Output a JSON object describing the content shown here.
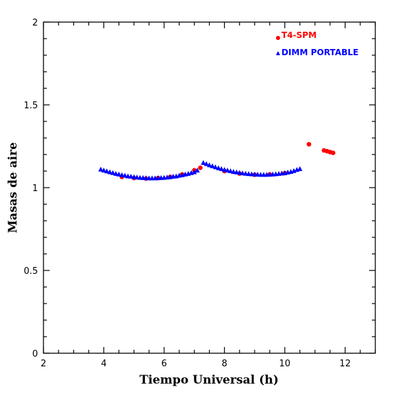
{
  "chart_data": {
    "type": "scatter",
    "xlabel": "Tiempo Universal (h)",
    "ylabel": "Masas de aire",
    "xlim": [
      2,
      13
    ],
    "ylim": [
      0,
      2
    ],
    "x_ticks": [
      2,
      4,
      6,
      8,
      10,
      12
    ],
    "y_ticks": [
      0,
      0.5,
      1,
      1.5,
      2
    ],
    "x_tick_labels": [
      "2",
      "4",
      "6",
      "8",
      "10",
      "12"
    ],
    "y_tick_labels": [
      "0",
      "0.5",
      "1",
      "1.5",
      "2"
    ],
    "legend_position": "top-right",
    "colors": {
      "t4": "#ff0000",
      "dimm": "#0000ff",
      "axes": "#000000"
    },
    "series": [
      {
        "name": "T4-SPM",
        "marker": "circle",
        "color": "#ff0000",
        "points": [
          [
            4.6,
            1.065
          ],
          [
            5.0,
            1.058
          ],
          [
            5.4,
            1.055
          ],
          [
            5.8,
            1.058
          ],
          [
            6.2,
            1.065
          ],
          [
            6.6,
            1.08
          ],
          [
            7.0,
            1.105
          ],
          [
            7.2,
            1.12
          ],
          [
            8.0,
            1.1
          ],
          [
            8.5,
            1.085
          ],
          [
            9.0,
            1.078
          ],
          [
            9.5,
            1.08
          ],
          [
            10.0,
            1.088
          ],
          [
            10.8,
            1.262
          ],
          [
            11.3,
            1.225
          ],
          [
            11.4,
            1.22
          ],
          [
            11.5,
            1.215
          ],
          [
            11.6,
            1.21
          ]
        ]
      },
      {
        "name": "DIMM PORTABLE",
        "marker": "triangle",
        "color": "#0000ff",
        "points": [
          [
            3.9,
            1.11
          ],
          [
            4.0,
            1.104
          ],
          [
            4.1,
            1.099
          ],
          [
            4.2,
            1.094
          ],
          [
            4.3,
            1.089
          ],
          [
            4.4,
            1.084
          ],
          [
            4.5,
            1.08
          ],
          [
            4.6,
            1.076
          ],
          [
            4.7,
            1.073
          ],
          [
            4.8,
            1.069
          ],
          [
            4.9,
            1.067
          ],
          [
            5.0,
            1.064
          ],
          [
            5.1,
            1.062
          ],
          [
            5.2,
            1.06
          ],
          [
            5.3,
            1.059
          ],
          [
            5.4,
            1.058
          ],
          [
            5.5,
            1.057
          ],
          [
            5.6,
            1.057
          ],
          [
            5.7,
            1.057
          ],
          [
            5.8,
            1.058
          ],
          [
            5.9,
            1.059
          ],
          [
            6.0,
            1.06
          ],
          [
            6.1,
            1.062
          ],
          [
            6.2,
            1.064
          ],
          [
            6.3,
            1.067
          ],
          [
            6.4,
            1.069
          ],
          [
            6.5,
            1.073
          ],
          [
            6.6,
            1.076
          ],
          [
            6.7,
            1.08
          ],
          [
            6.8,
            1.084
          ],
          [
            6.9,
            1.089
          ],
          [
            7.0,
            1.094
          ],
          [
            7.1,
            1.104
          ],
          [
            7.3,
            1.15
          ],
          [
            7.4,
            1.143
          ],
          [
            7.5,
            1.136
          ],
          [
            7.6,
            1.13
          ],
          [
            7.7,
            1.124
          ],
          [
            7.8,
            1.118
          ],
          [
            7.9,
            1.113
          ],
          [
            8.0,
            1.108
          ],
          [
            8.1,
            1.104
          ],
          [
            8.2,
            1.1
          ],
          [
            8.3,
            1.096
          ],
          [
            8.4,
            1.093
          ],
          [
            8.5,
            1.09
          ],
          [
            8.6,
            1.087
          ],
          [
            8.7,
            1.085
          ],
          [
            8.8,
            1.083
          ],
          [
            8.9,
            1.081
          ],
          [
            9.0,
            1.08
          ],
          [
            9.1,
            1.079
          ],
          [
            9.2,
            1.078
          ],
          [
            9.3,
            1.078
          ],
          [
            9.4,
            1.078
          ],
          [
            9.5,
            1.079
          ],
          [
            9.6,
            1.08
          ],
          [
            9.7,
            1.082
          ],
          [
            9.8,
            1.084
          ],
          [
            9.9,
            1.086
          ],
          [
            10.0,
            1.088
          ],
          [
            10.1,
            1.092
          ],
          [
            10.2,
            1.096
          ],
          [
            10.3,
            1.101
          ],
          [
            10.4,
            1.108
          ],
          [
            10.5,
            1.113
          ]
        ]
      }
    ]
  }
}
